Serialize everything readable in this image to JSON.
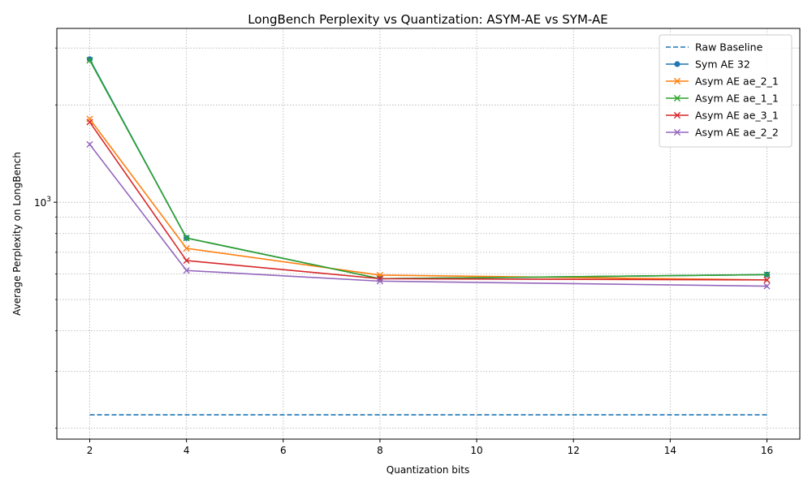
{
  "chart_data": {
    "type": "line",
    "title": "LongBench Perplexity vs Quantization: ASYM-AE vs SYM-AE",
    "xlabel": "Quantization bits",
    "ylabel": "Average Perplexity on LongBench",
    "xlim": [
      1.32,
      16.68
    ],
    "ylim": [
      185,
      3450
    ],
    "yscale": "log",
    "x_ticks": [
      2,
      4,
      6,
      8,
      10,
      12,
      14,
      16
    ],
    "y_tick_label": {
      "value": 1000,
      "base": "10",
      "exponent": "3"
    },
    "y_minor_ticks": [
      200,
      300,
      400,
      500,
      600,
      700,
      800,
      900,
      2000,
      3000
    ],
    "grid": true,
    "legend_position": "upper right",
    "series": [
      {
        "name": "Raw Baseline",
        "style": "dashed",
        "marker": "none",
        "color": "#1f77b4",
        "x": [
          2,
          16
        ],
        "y": [
          220,
          220
        ]
      },
      {
        "name": "Sym AE 32",
        "style": "solid",
        "marker": "circle",
        "color": "#1f77b4",
        "x": [
          2,
          4,
          8,
          16
        ],
        "y": [
          2770,
          775,
          580,
          597
        ]
      },
      {
        "name": "Asym AE ae_2_1",
        "style": "solid",
        "marker": "x",
        "color": "#ff7f0e",
        "x": [
          2,
          4,
          8,
          16
        ],
        "y": [
          1810,
          720,
          595,
          575
        ]
      },
      {
        "name": "Asym AE ae_1_1",
        "style": "solid",
        "marker": "x",
        "color": "#2ca02c",
        "x": [
          2,
          4,
          8,
          16
        ],
        "y": [
          2750,
          775,
          580,
          597
        ]
      },
      {
        "name": "Asym AE ae_3_1",
        "style": "solid",
        "marker": "x",
        "color": "#d62728",
        "x": [
          2,
          4,
          8,
          16
        ],
        "y": [
          1770,
          660,
          580,
          575
        ]
      },
      {
        "name": "Asym AE ae_2_2",
        "style": "solid",
        "marker": "x",
        "color": "#9467bd",
        "x": [
          2,
          4,
          8,
          16
        ],
        "y": [
          1510,
          615,
          570,
          550
        ]
      }
    ]
  }
}
